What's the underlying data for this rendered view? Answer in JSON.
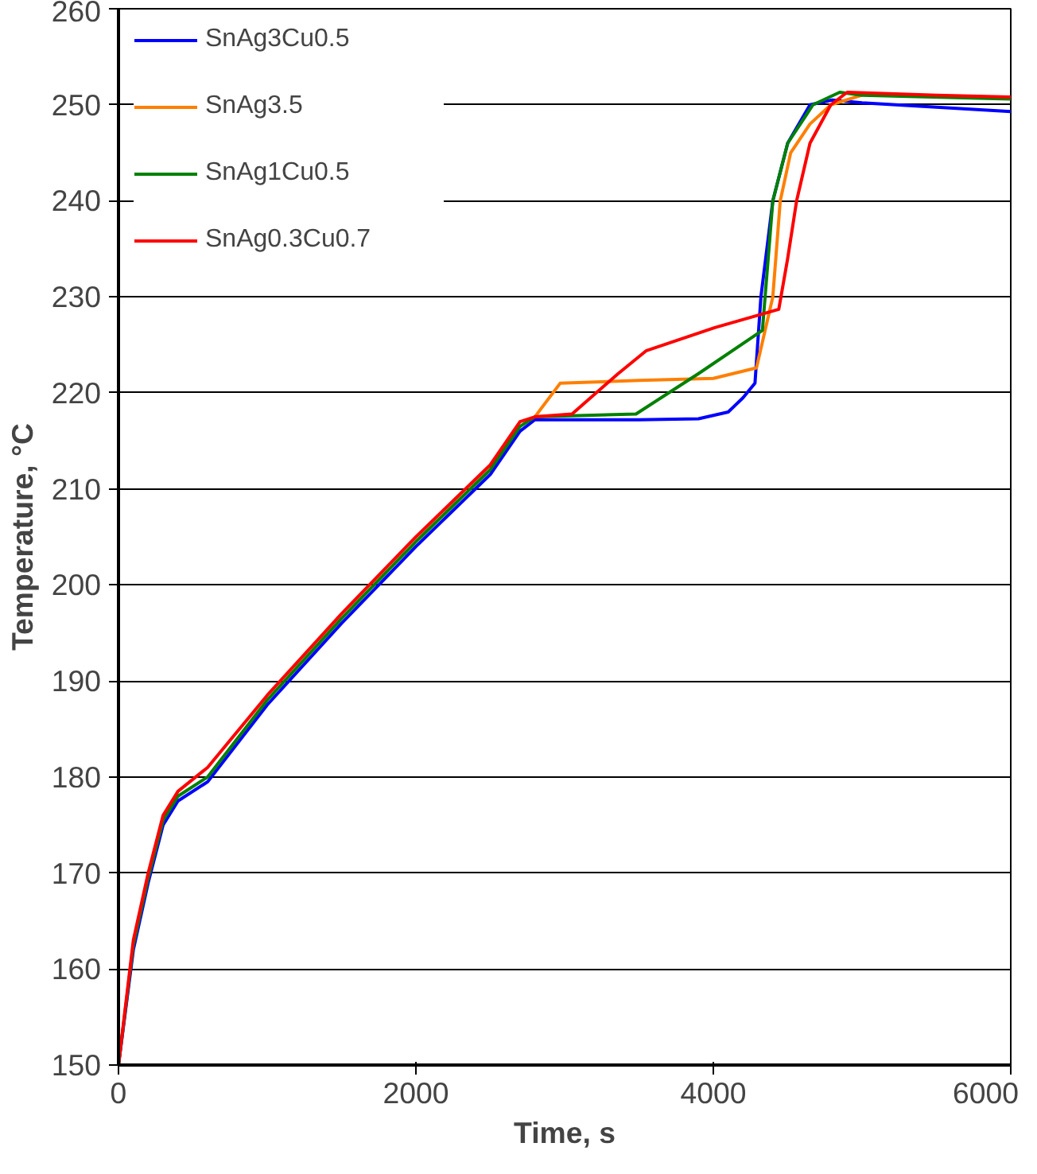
{
  "chart_data": {
    "type": "line",
    "xlabel": "Time, s",
    "ylabel": "Temperature, °C",
    "xlim": [
      0,
      6000
    ],
    "ylim": [
      150,
      260
    ],
    "xticks": [
      0,
      2000,
      4000,
      6000
    ],
    "yticks": [
      150,
      160,
      170,
      180,
      190,
      200,
      210,
      220,
      230,
      240,
      250,
      260
    ],
    "grid": "y",
    "legend": "top left",
    "line_style": "solid",
    "marker": "none",
    "series": [
      {
        "name": "SnAg3Cu0.5",
        "color": "#0000ff",
        "x": [
          0,
          100,
          200,
          300,
          400,
          600,
          1000,
          1500,
          2000,
          2500,
          2700,
          2800,
          3500,
          3900,
          4100,
          4200,
          4280,
          4320,
          4400,
          4500,
          4650,
          4800,
          5000,
          6000
        ],
        "values": [
          150,
          162,
          169,
          175,
          177.5,
          179.5,
          187.5,
          196,
          204,
          211.5,
          216,
          217.2,
          217.2,
          217.3,
          218,
          219.5,
          221,
          230,
          240,
          246,
          250,
          250.5,
          250.2,
          249.3
        ]
      },
      {
        "name": "SnAg3.5",
        "color": "#ff7f00",
        "x": [
          2800,
          2970,
          3500,
          4000,
          4290,
          4400,
          4450,
          4520,
          4650,
          4790,
          5000
        ],
        "values": [
          217.5,
          221,
          221.3,
          221.5,
          222.6,
          230,
          240,
          245,
          248,
          250,
          251
        ]
      },
      {
        "name": "SnAg1Cu0.5",
        "color": "#008000",
        "x": [
          0,
          100,
          200,
          300,
          400,
          600,
          1000,
          1500,
          2000,
          2500,
          2700,
          2800,
          3480,
          3900,
          4330,
          4400,
          4500,
          4670,
          4850,
          5000,
          6000
        ],
        "values": [
          150,
          162.5,
          169.5,
          175.5,
          178,
          180,
          188,
          196.5,
          204.5,
          212,
          216.5,
          217.5,
          217.8,
          222,
          226.5,
          240,
          246,
          250,
          251.3,
          251,
          250.6
        ]
      },
      {
        "name": "SnAg0.3Cu0.7",
        "color": "#ff0000",
        "x": [
          0,
          100,
          200,
          300,
          400,
          600,
          1000,
          1500,
          2000,
          2500,
          2700,
          2800,
          3050,
          3360,
          3550,
          4010,
          4440,
          4500,
          4560,
          4650,
          4790,
          4900,
          5500,
          6000
        ],
        "values": [
          150,
          163,
          170,
          176,
          178.5,
          181,
          188.5,
          197,
          205,
          212.5,
          217,
          217.5,
          217.8,
          222,
          224.4,
          226.8,
          228.7,
          234,
          240,
          246,
          250,
          251.3,
          251,
          250.8
        ]
      }
    ]
  }
}
